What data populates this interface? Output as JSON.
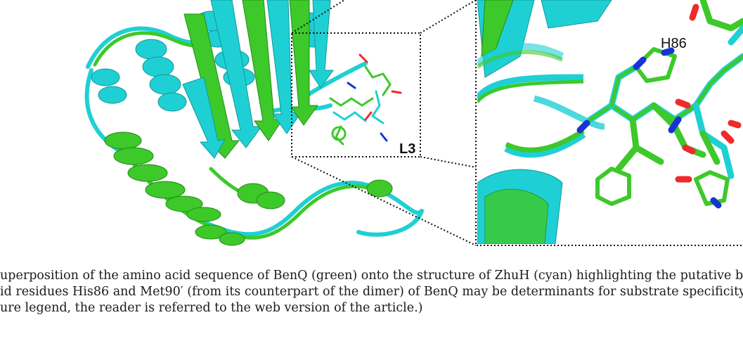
{
  "figure": {
    "labels": {
      "loop": "L3",
      "residue": "H86"
    },
    "colors": {
      "benq": "#3dc92a",
      "zhuh": "#1ed0d4",
      "oxygen": "#ee2a2a",
      "nitrogen": "#1833d4"
    }
  },
  "caption": {
    "line1": "uperposition of the amino acid sequence of BenQ (green) onto the structure of ZhuH (cyan) highlighting the putative binding p",
    "line2": "id residues His86 and Met90′ (from its counterpart of the dimer) of BenQ may be determinants for substrate specificity. (For int",
    "line3": "ure legend, the reader is referred to the web version of the article.)"
  }
}
